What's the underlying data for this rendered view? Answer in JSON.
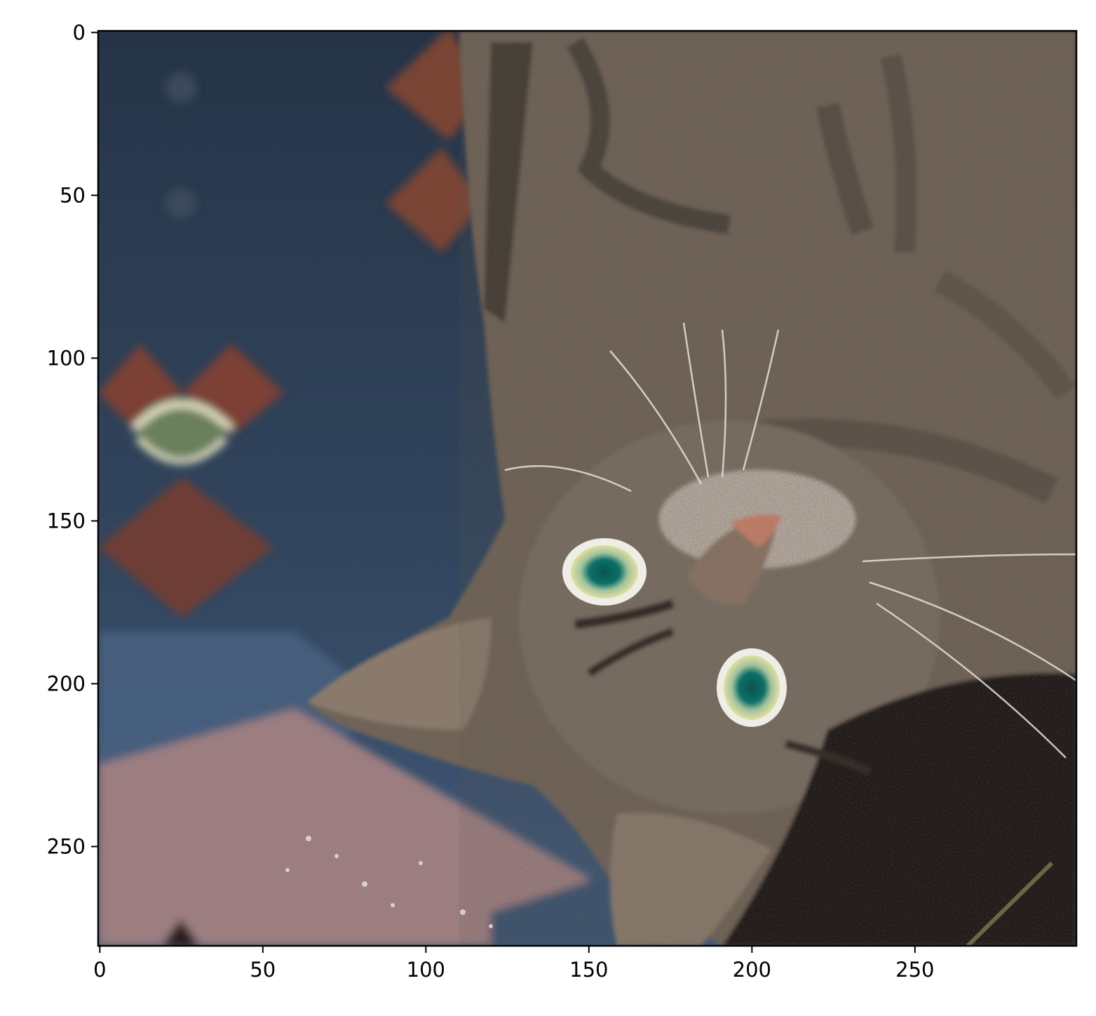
{
  "figure": {
    "type": "image",
    "image_subject": "tabby-cat-upside-down-on-patterned-rug",
    "image_width": 300,
    "image_height": 281,
    "x_ticks": [
      0,
      50,
      100,
      150,
      200,
      250
    ],
    "y_ticks": [
      0,
      50,
      100,
      150,
      200,
      250
    ],
    "x_tick_labels": [
      "0",
      "50",
      "100",
      "150",
      "200",
      "250"
    ],
    "y_tick_labels": [
      "0",
      "50",
      "100",
      "150",
      "200",
      "250"
    ],
    "colors": {
      "rug_navy": "#2b3a4f",
      "rug_blue": "#3e5573",
      "rug_rust": "#8a4a3a",
      "rug_pink": "#9e7f80",
      "fur_brown": "#6f6459",
      "fur_dark": "#3b332d",
      "eye_green": "#0e6f68",
      "eye_yellow": "#d9d79a",
      "nose_pink": "#c9806a",
      "shadow": "#1b1714"
    }
  }
}
